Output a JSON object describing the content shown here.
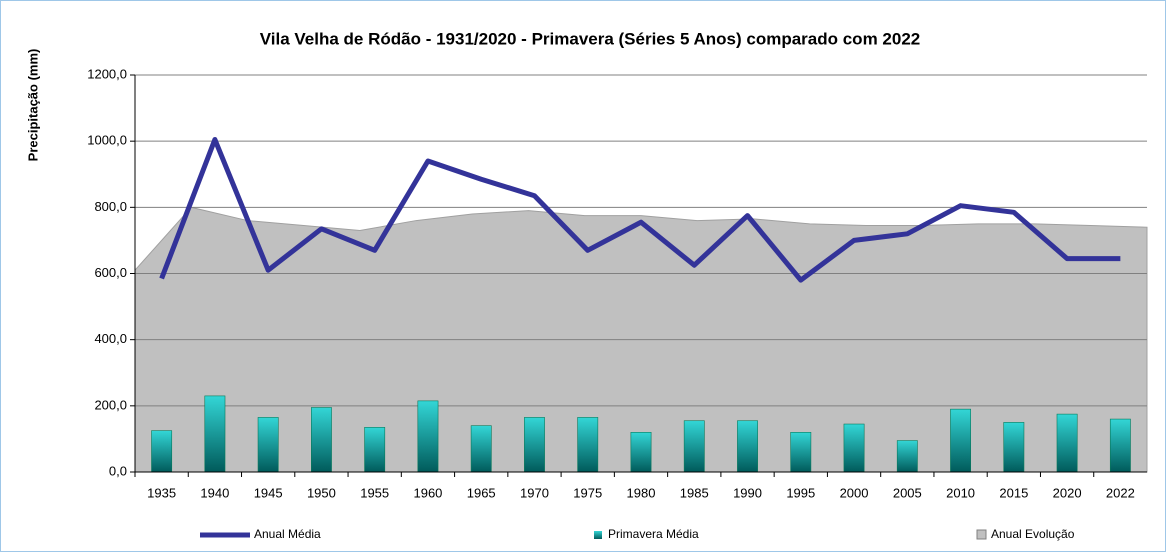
{
  "chart_data": {
    "type": "combo",
    "title": "Vila Velha de Ródão - 1931/2020  - Primavera (Séries 5 Anos)  comparado com 2022",
    "y_label": "Precipitação (mm)",
    "categories": [
      "1935",
      "1940",
      "1945",
      "1950",
      "1955",
      "1960",
      "1965",
      "1970",
      "1975",
      "1980",
      "1985",
      "1990",
      "1995",
      "2000",
      "2005",
      "2010",
      "2015",
      "2020",
      "2022"
    ],
    "series": [
      {
        "name": "Anual Média",
        "kind": "line",
        "color": "#333399",
        "values": [
          585,
          1005,
          610,
          735,
          670,
          940,
          885,
          835,
          670,
          755,
          625,
          775,
          580,
          700,
          720,
          805,
          785,
          645,
          645
        ]
      },
      {
        "name": "Primavera Média",
        "kind": "bar",
        "color": "#1fbfbf",
        "values": [
          125,
          230,
          165,
          195,
          135,
          215,
          140,
          165,
          165,
          120,
          155,
          155,
          120,
          145,
          95,
          190,
          150,
          175,
          160
        ]
      },
      {
        "name": "Anual Evolução",
        "kind": "area",
        "color": "#c0c0c0",
        "values": [
          610,
          800,
          760,
          745,
          730,
          760,
          780,
          790,
          775,
          775,
          760,
          765,
          750,
          745,
          745,
          750,
          750,
          745,
          740
        ]
      }
    ],
    "ylim": [
      0,
      1200
    ],
    "yticks": [
      {
        "value": 0,
        "label": "0,0"
      },
      {
        "value": 200,
        "label": "200,0"
      },
      {
        "value": 400,
        "label": "400,0"
      },
      {
        "value": 600,
        "label": "600,0"
      },
      {
        "value": 800,
        "label": "800,0"
      },
      {
        "value": 1000,
        "label": "1000,0"
      },
      {
        "value": 1200,
        "label": "1200,0"
      }
    ],
    "grid": true
  }
}
